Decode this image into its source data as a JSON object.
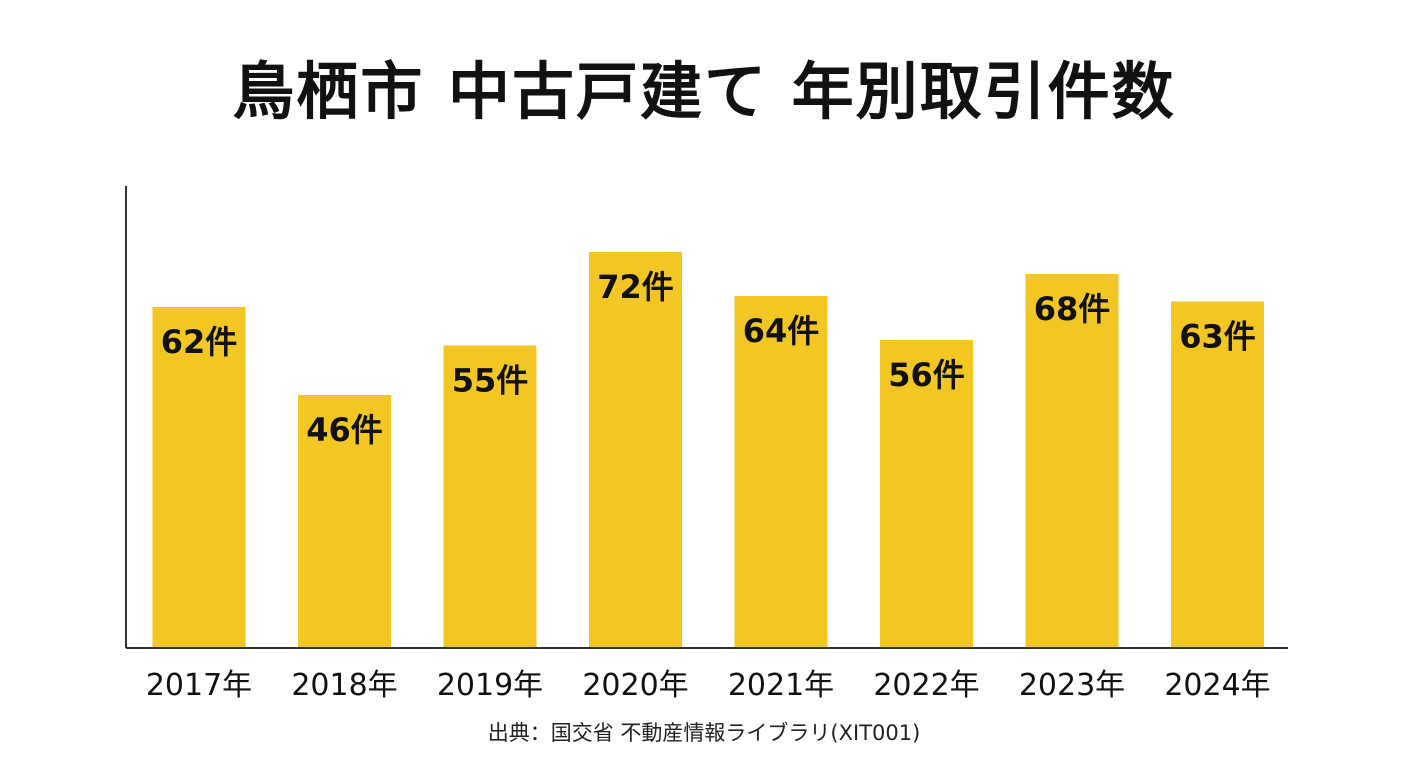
{
  "chart_data": {
    "type": "bar",
    "title": "鳥栖市 中古戸建て 年別取引件数",
    "categories": [
      "2017年",
      "2018年",
      "2019年",
      "2020年",
      "2021年",
      "2022年",
      "2023年",
      "2024年"
    ],
    "values": [
      62,
      46,
      55,
      72,
      64,
      56,
      68,
      63
    ],
    "data_labels": [
      "62件",
      "46件",
      "55件",
      "72件",
      "64件",
      "56件",
      "68件",
      "63件"
    ],
    "xlabel": "",
    "ylabel": "",
    "ylim": [
      0,
      84
    ],
    "grid": false,
    "bar_color": "#F2C623"
  },
  "source": "出典：国交省 不動産情報ライブラリ(XIT001)"
}
